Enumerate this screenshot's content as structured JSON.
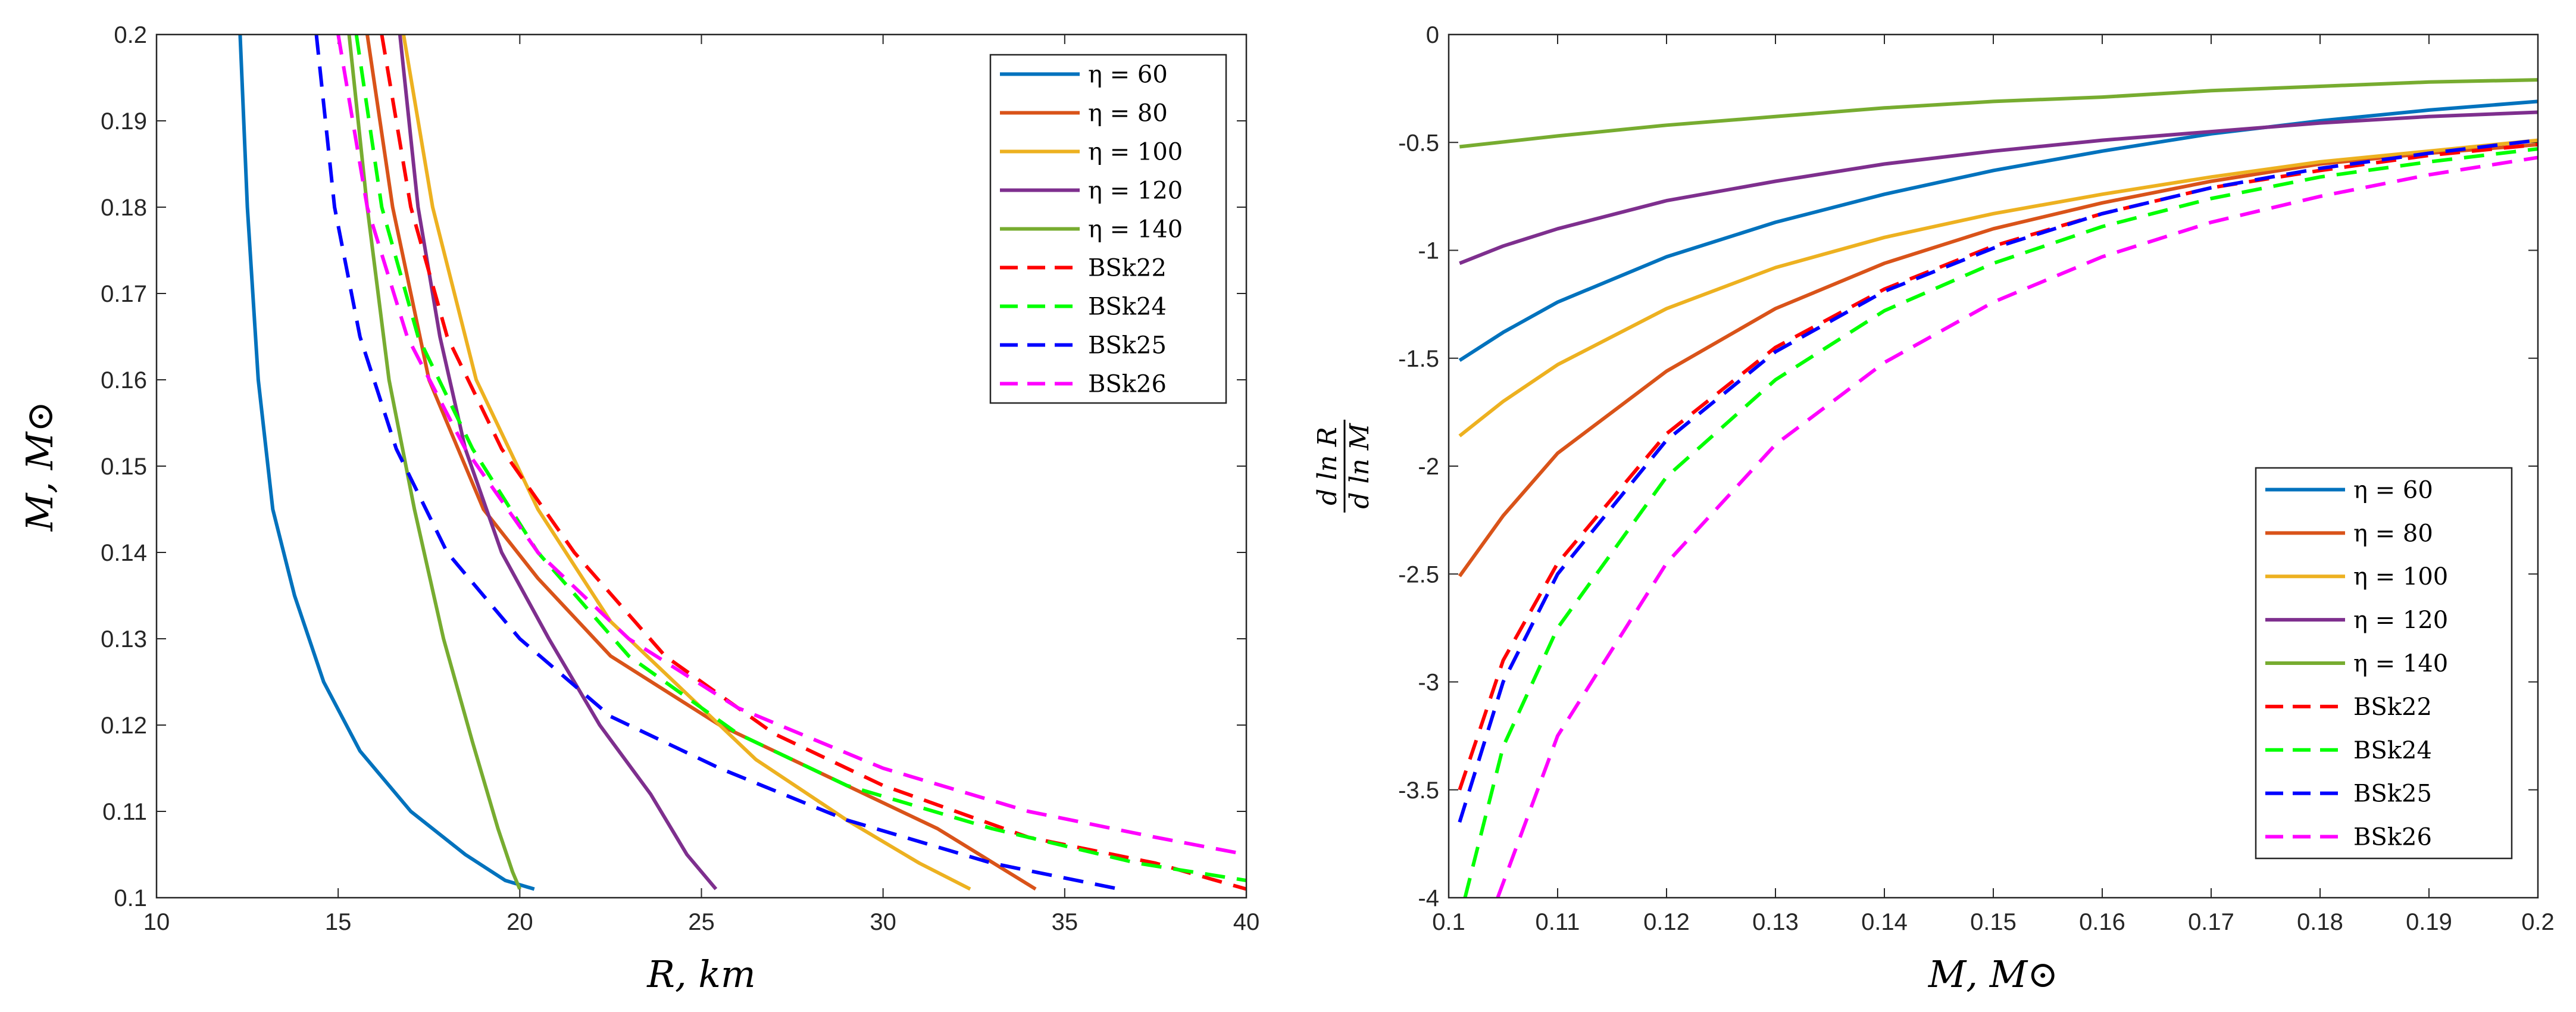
{
  "chart_data": [
    {
      "type": "line",
      "xlabel": "R, km",
      "ylabel": "M, M⊙",
      "xlim": [
        10,
        40
      ],
      "ylim": [
        0.1,
        0.2
      ],
      "xticks": [
        10,
        15,
        20,
        25,
        30,
        35,
        40
      ],
      "yticks": [
        0.1,
        0.11,
        0.12,
        0.13,
        0.14,
        0.15,
        0.16,
        0.17,
        0.18,
        0.19,
        0.2
      ],
      "legend": "top-right",
      "series": [
        {
          "name": "η = 60",
          "style": "solid",
          "color": "#0072BD",
          "points": [
            [
              12.3,
              0.2
            ],
            [
              12.5,
              0.18
            ],
            [
              12.8,
              0.16
            ],
            [
              13.2,
              0.145
            ],
            [
              13.8,
              0.135
            ],
            [
              14.6,
              0.125
            ],
            [
              15.6,
              0.117
            ],
            [
              17.0,
              0.11
            ],
            [
              18.5,
              0.105
            ],
            [
              19.6,
              0.102
            ],
            [
              20.4,
              0.101
            ]
          ]
        },
        {
          "name": "η = 80",
          "style": "solid",
          "color": "#D95319",
          "points": [
            [
              15.8,
              0.2
            ],
            [
              16.5,
              0.18
            ],
            [
              17.5,
              0.16
            ],
            [
              19.0,
              0.145
            ],
            [
              20.5,
              0.137
            ],
            [
              22.5,
              0.128
            ],
            [
              25.5,
              0.12
            ],
            [
              28.5,
              0.114
            ],
            [
              31.5,
              0.108
            ],
            [
              34.2,
              0.101
            ]
          ]
        },
        {
          "name": "η = 100",
          "style": "solid",
          "color": "#EDB120",
          "points": [
            [
              16.8,
              0.2
            ],
            [
              17.6,
              0.18
            ],
            [
              18.8,
              0.16
            ],
            [
              20.5,
              0.145
            ],
            [
              22.5,
              0.132
            ],
            [
              24.5,
              0.124
            ],
            [
              26.5,
              0.116
            ],
            [
              29.0,
              0.109
            ],
            [
              31.0,
              0.104
            ],
            [
              32.4,
              0.101
            ]
          ]
        },
        {
          "name": "η = 120",
          "style": "solid",
          "color": "#7E2F8E",
          "points": [
            [
              16.7,
              0.2
            ],
            [
              17.2,
              0.18
            ],
            [
              17.8,
              0.165
            ],
            [
              18.5,
              0.152
            ],
            [
              19.5,
              0.14
            ],
            [
              20.8,
              0.13
            ],
            [
              22.2,
              0.12
            ],
            [
              23.6,
              0.112
            ],
            [
              24.6,
              0.105
            ],
            [
              25.4,
              0.101
            ]
          ]
        },
        {
          "name": "η = 140",
          "style": "solid",
          "color": "#77AC30",
          "points": [
            [
              15.3,
              0.2
            ],
            [
              15.8,
              0.18
            ],
            [
              16.4,
              0.16
            ],
            [
              17.1,
              0.145
            ],
            [
              17.9,
              0.13
            ],
            [
              18.7,
              0.118
            ],
            [
              19.4,
              0.108
            ],
            [
              19.8,
              0.103
            ],
            [
              20.0,
              0.101
            ]
          ]
        },
        {
          "name": "BSk22",
          "style": "dashed",
          "color": "#FF0000",
          "points": [
            [
              16.2,
              0.2
            ],
            [
              17.0,
              0.18
            ],
            [
              18.0,
              0.165
            ],
            [
              19.5,
              0.152
            ],
            [
              21.5,
              0.14
            ],
            [
              24.0,
              0.128
            ],
            [
              27.0,
              0.119
            ],
            [
              30.0,
              0.113
            ],
            [
              34.0,
              0.107
            ],
            [
              37.5,
              0.104
            ],
            [
              40.0,
              0.101
            ]
          ]
        },
        {
          "name": "BSk24",
          "style": "dashed",
          "color": "#00FF00",
          "points": [
            [
              15.5,
              0.2
            ],
            [
              16.2,
              0.18
            ],
            [
              17.2,
              0.165
            ],
            [
              18.7,
              0.152
            ],
            [
              20.5,
              0.14
            ],
            [
              23.0,
              0.128
            ],
            [
              26.0,
              0.119
            ],
            [
              29.0,
              0.113
            ],
            [
              33.0,
              0.108
            ],
            [
              37.0,
              0.104
            ],
            [
              40.0,
              0.102
            ]
          ]
        },
        {
          "name": "BSk25",
          "style": "dashed",
          "color": "#0000FF",
          "points": [
            [
              14.4,
              0.2
            ],
            [
              14.9,
              0.18
            ],
            [
              15.6,
              0.165
            ],
            [
              16.6,
              0.152
            ],
            [
              18.0,
              0.14
            ],
            [
              20.0,
              0.13
            ],
            [
              22.5,
              0.121
            ],
            [
              25.5,
              0.115
            ],
            [
              29.0,
              0.109
            ],
            [
              33.0,
              0.104
            ],
            [
              36.5,
              0.101
            ]
          ]
        },
        {
          "name": "BSk26",
          "style": "dashed",
          "color": "#FF00FF",
          "points": [
            [
              15.0,
              0.2
            ],
            [
              15.8,
              0.18
            ],
            [
              16.9,
              0.165
            ],
            [
              18.5,
              0.152
            ],
            [
              20.5,
              0.14
            ],
            [
              23.0,
              0.13
            ],
            [
              26.0,
              0.122
            ],
            [
              30.0,
              0.115
            ],
            [
              34.0,
              0.11
            ],
            [
              37.5,
              0.107
            ],
            [
              40.0,
              0.105
            ]
          ]
        }
      ]
    },
    {
      "type": "line",
      "xlabel": "M, M⊙",
      "ylabel": "d ln R / d ln M",
      "ylabel_num": "d ln R",
      "ylabel_den": "d ln M",
      "xlim": [
        0.1,
        0.2
      ],
      "ylim": [
        -4,
        0
      ],
      "xticks": [
        0.1,
        0.11,
        0.12,
        0.13,
        0.14,
        0.15,
        0.16,
        0.17,
        0.18,
        0.19,
        0.2
      ],
      "yticks": [
        -4,
        -3.5,
        -3,
        -2.5,
        -2,
        -1.5,
        -1,
        -0.5,
        0
      ],
      "legend": "bottom-right",
      "series": [
        {
          "name": "η = 60",
          "style": "solid",
          "color": "#0072BD",
          "points": [
            [
              0.101,
              -1.51
            ],
            [
              0.105,
              -1.38
            ],
            [
              0.11,
              -1.24
            ],
            [
              0.12,
              -1.03
            ],
            [
              0.13,
              -0.87
            ],
            [
              0.14,
              -0.74
            ],
            [
              0.15,
              -0.63
            ],
            [
              0.16,
              -0.54
            ],
            [
              0.17,
              -0.46
            ],
            [
              0.18,
              -0.4
            ],
            [
              0.19,
              -0.35
            ],
            [
              0.2,
              -0.31
            ]
          ]
        },
        {
          "name": "η = 80",
          "style": "solid",
          "color": "#D95319",
          "points": [
            [
              0.101,
              -2.51
            ],
            [
              0.105,
              -2.23
            ],
            [
              0.11,
              -1.94
            ],
            [
              0.12,
              -1.56
            ],
            [
              0.13,
              -1.27
            ],
            [
              0.14,
              -1.06
            ],
            [
              0.15,
              -0.9
            ],
            [
              0.16,
              -0.78
            ],
            [
              0.17,
              -0.68
            ],
            [
              0.18,
              -0.6
            ],
            [
              0.19,
              -0.55
            ],
            [
              0.2,
              -0.51
            ]
          ]
        },
        {
          "name": "η = 100",
          "style": "solid",
          "color": "#EDB120",
          "points": [
            [
              0.101,
              -1.86
            ],
            [
              0.105,
              -1.7
            ],
            [
              0.11,
              -1.53
            ],
            [
              0.12,
              -1.27
            ],
            [
              0.13,
              -1.08
            ],
            [
              0.14,
              -0.94
            ],
            [
              0.15,
              -0.83
            ],
            [
              0.16,
              -0.74
            ],
            [
              0.17,
              -0.66
            ],
            [
              0.18,
              -0.59
            ],
            [
              0.19,
              -0.54
            ],
            [
              0.2,
              -0.49
            ]
          ]
        },
        {
          "name": "η = 120",
          "style": "solid",
          "color": "#7E2F8E",
          "points": [
            [
              0.101,
              -1.06
            ],
            [
              0.105,
              -0.98
            ],
            [
              0.11,
              -0.9
            ],
            [
              0.12,
              -0.77
            ],
            [
              0.13,
              -0.68
            ],
            [
              0.14,
              -0.6
            ],
            [
              0.15,
              -0.54
            ],
            [
              0.16,
              -0.49
            ],
            [
              0.17,
              -0.45
            ],
            [
              0.18,
              -0.41
            ],
            [
              0.19,
              -0.38
            ],
            [
              0.2,
              -0.36
            ]
          ]
        },
        {
          "name": "η = 140",
          "style": "solid",
          "color": "#77AC30",
          "points": [
            [
              0.101,
              -0.52
            ],
            [
              0.11,
              -0.47
            ],
            [
              0.12,
              -0.42
            ],
            [
              0.13,
              -0.38
            ],
            [
              0.14,
              -0.34
            ],
            [
              0.15,
              -0.31
            ],
            [
              0.16,
              -0.29
            ],
            [
              0.17,
              -0.26
            ],
            [
              0.18,
              -0.24
            ],
            [
              0.19,
              -0.22
            ],
            [
              0.2,
              -0.21
            ]
          ]
        },
        {
          "name": "BSk22",
          "style": "dashed",
          "color": "#FF0000",
          "points": [
            [
              0.101,
              -3.5
            ],
            [
              0.105,
              -2.9
            ],
            [
              0.11,
              -2.45
            ],
            [
              0.12,
              -1.85
            ],
            [
              0.13,
              -1.45
            ],
            [
              0.14,
              -1.18
            ],
            [
              0.15,
              -0.98
            ],
            [
              0.16,
              -0.83
            ],
            [
              0.17,
              -0.71
            ],
            [
              0.18,
              -0.63
            ],
            [
              0.19,
              -0.56
            ],
            [
              0.2,
              -0.51
            ]
          ]
        },
        {
          "name": "BSk24",
          "style": "dashed",
          "color": "#00FF00",
          "points": [
            [
              0.1015,
              -4.0
            ],
            [
              0.105,
              -3.3
            ],
            [
              0.11,
              -2.75
            ],
            [
              0.12,
              -2.05
            ],
            [
              0.13,
              -1.6
            ],
            [
              0.14,
              -1.28
            ],
            [
              0.15,
              -1.06
            ],
            [
              0.16,
              -0.89
            ],
            [
              0.17,
              -0.76
            ],
            [
              0.18,
              -0.66
            ],
            [
              0.19,
              -0.59
            ],
            [
              0.2,
              -0.53
            ]
          ]
        },
        {
          "name": "BSk25",
          "style": "dashed",
          "color": "#0000FF",
          "points": [
            [
              0.101,
              -3.65
            ],
            [
              0.105,
              -3.0
            ],
            [
              0.11,
              -2.5
            ],
            [
              0.12,
              -1.88
            ],
            [
              0.13,
              -1.47
            ],
            [
              0.14,
              -1.19
            ],
            [
              0.15,
              -0.99
            ],
            [
              0.16,
              -0.83
            ],
            [
              0.17,
              -0.71
            ],
            [
              0.18,
              -0.62
            ],
            [
              0.19,
              -0.55
            ],
            [
              0.2,
              -0.49
            ]
          ]
        },
        {
          "name": "BSk26",
          "style": "dashed",
          "color": "#FF00FF",
          "points": [
            [
              0.1045,
              -4.0
            ],
            [
              0.11,
              -3.25
            ],
            [
              0.12,
              -2.45
            ],
            [
              0.13,
              -1.9
            ],
            [
              0.14,
              -1.52
            ],
            [
              0.15,
              -1.24
            ],
            [
              0.16,
              -1.03
            ],
            [
              0.17,
              -0.87
            ],
            [
              0.18,
              -0.75
            ],
            [
              0.19,
              -0.65
            ],
            [
              0.2,
              -0.57
            ]
          ]
        }
      ]
    }
  ]
}
